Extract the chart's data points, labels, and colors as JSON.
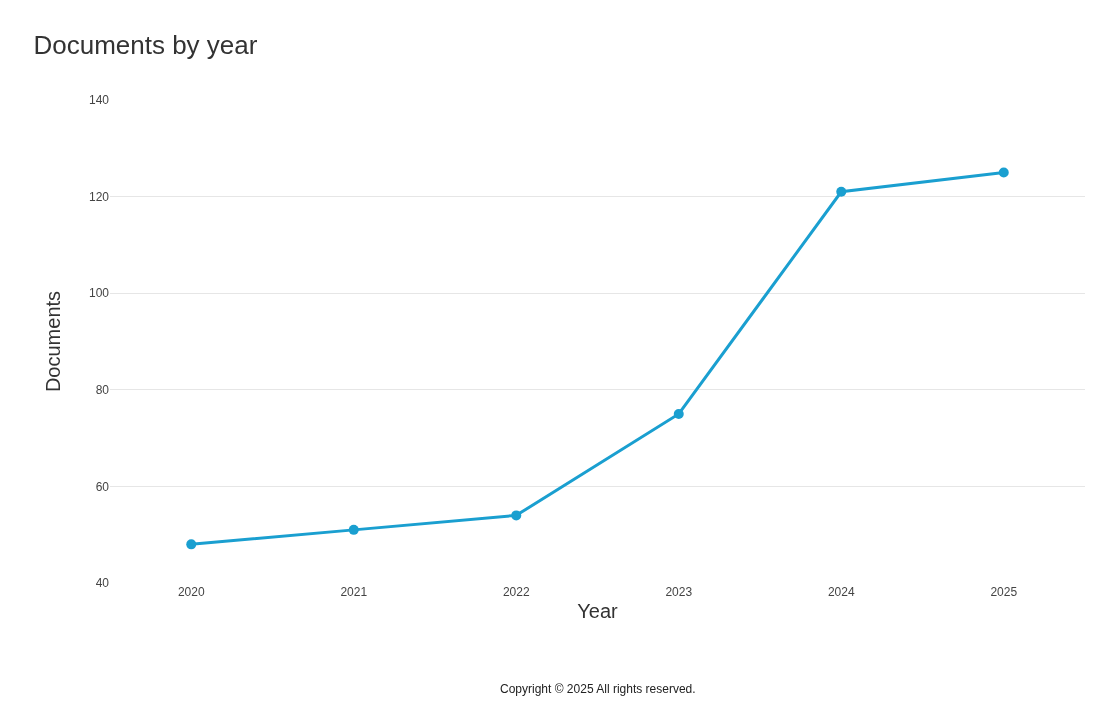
{
  "chart_data": {
    "type": "line",
    "title": "Documents by year",
    "xlabel": "Year",
    "ylabel": "Documents",
    "categories": [
      "2020",
      "2021",
      "2022",
      "2023",
      "2024",
      "2025"
    ],
    "series": [
      {
        "color": "#1a9fd0",
        "values": [
          48,
          51,
          54,
          75,
          121,
          125
        ]
      }
    ],
    "ylim": [
      40,
      140
    ],
    "yticks": [
      40,
      60,
      80,
      100,
      120,
      140
    ],
    "grid": "y",
    "legend": false,
    "marker": "circle",
    "line_style": "solid",
    "annotations": [
      "Copyright © 2025 All rights reserved."
    ]
  }
}
